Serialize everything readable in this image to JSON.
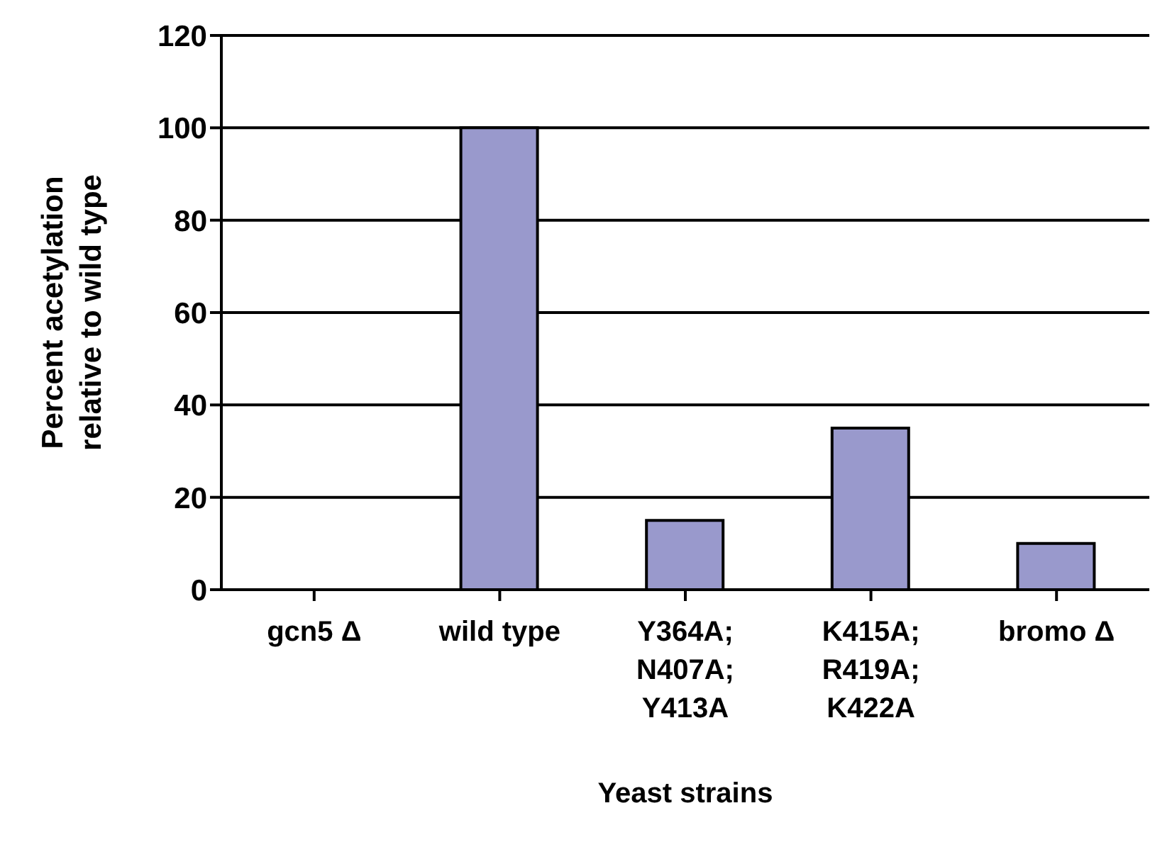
{
  "chart_data": {
    "type": "bar",
    "xlabel": "Yeast strains",
    "ylabel": "Percent acetylation\nrelative to wild type",
    "categories": [
      "gcn5 Δ",
      "wild type",
      "Y364A;\nN407A;\nY413A",
      "K415A;\nR419A;\nK422A",
      "bromo Δ"
    ],
    "values": [
      0,
      100,
      15,
      35,
      10
    ],
    "color": "#9999cc",
    "ylim": [
      0,
      120
    ],
    "yticks": [
      0,
      20,
      40,
      60,
      80,
      100,
      120
    ],
    "grid": "y"
  }
}
